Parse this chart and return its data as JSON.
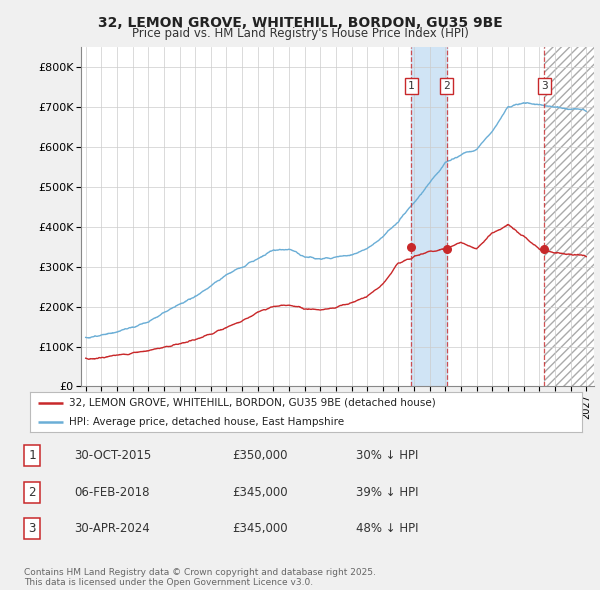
{
  "title_line1": "32, LEMON GROVE, WHITEHILL, BORDON, GU35 9BE",
  "title_line2": "Price paid vs. HM Land Registry's House Price Index (HPI)",
  "ylim": [
    0,
    850000
  ],
  "yticks": [
    0,
    100000,
    200000,
    300000,
    400000,
    500000,
    600000,
    700000,
    800000
  ],
  "ytick_labels": [
    "£0",
    "£100K",
    "£200K",
    "£300K",
    "£400K",
    "£500K",
    "£600K",
    "£700K",
    "£800K"
  ],
  "xlim_start": 1994.7,
  "xlim_end": 2027.5,
  "hpi_color": "#6baed6",
  "price_color": "#c8282a",
  "sale1_date": 2015.83,
  "sale1_price": 350000,
  "sale1_label": "1",
  "sale2_date": 2018.09,
  "sale2_price": 345000,
  "sale2_label": "2",
  "sale3_date": 2024.33,
  "sale3_price": 345000,
  "sale3_label": "3",
  "legend_red_label": "32, LEMON GROVE, WHITEHILL, BORDON, GU35 9BE (detached house)",
  "legend_blue_label": "HPI: Average price, detached house, East Hampshire",
  "table_rows": [
    {
      "num": "1",
      "date": "30-OCT-2015",
      "price": "£350,000",
      "change": "30% ↓ HPI"
    },
    {
      "num": "2",
      "date": "06-FEB-2018",
      "price": "£345,000",
      "change": "39% ↓ HPI"
    },
    {
      "num": "3",
      "date": "30-APR-2024",
      "price": "£345,000",
      "change": "48% ↓ HPI"
    }
  ],
  "footer": "Contains HM Land Registry data © Crown copyright and database right 2025.\nThis data is licensed under the Open Government Licence v3.0.",
  "bg_color": "#f0f0f0",
  "plot_bg_color": "#ffffff",
  "grid_color": "#cccccc",
  "shade12_color": "#d0e4f5",
  "shade3_color": "#d8d8d8"
}
